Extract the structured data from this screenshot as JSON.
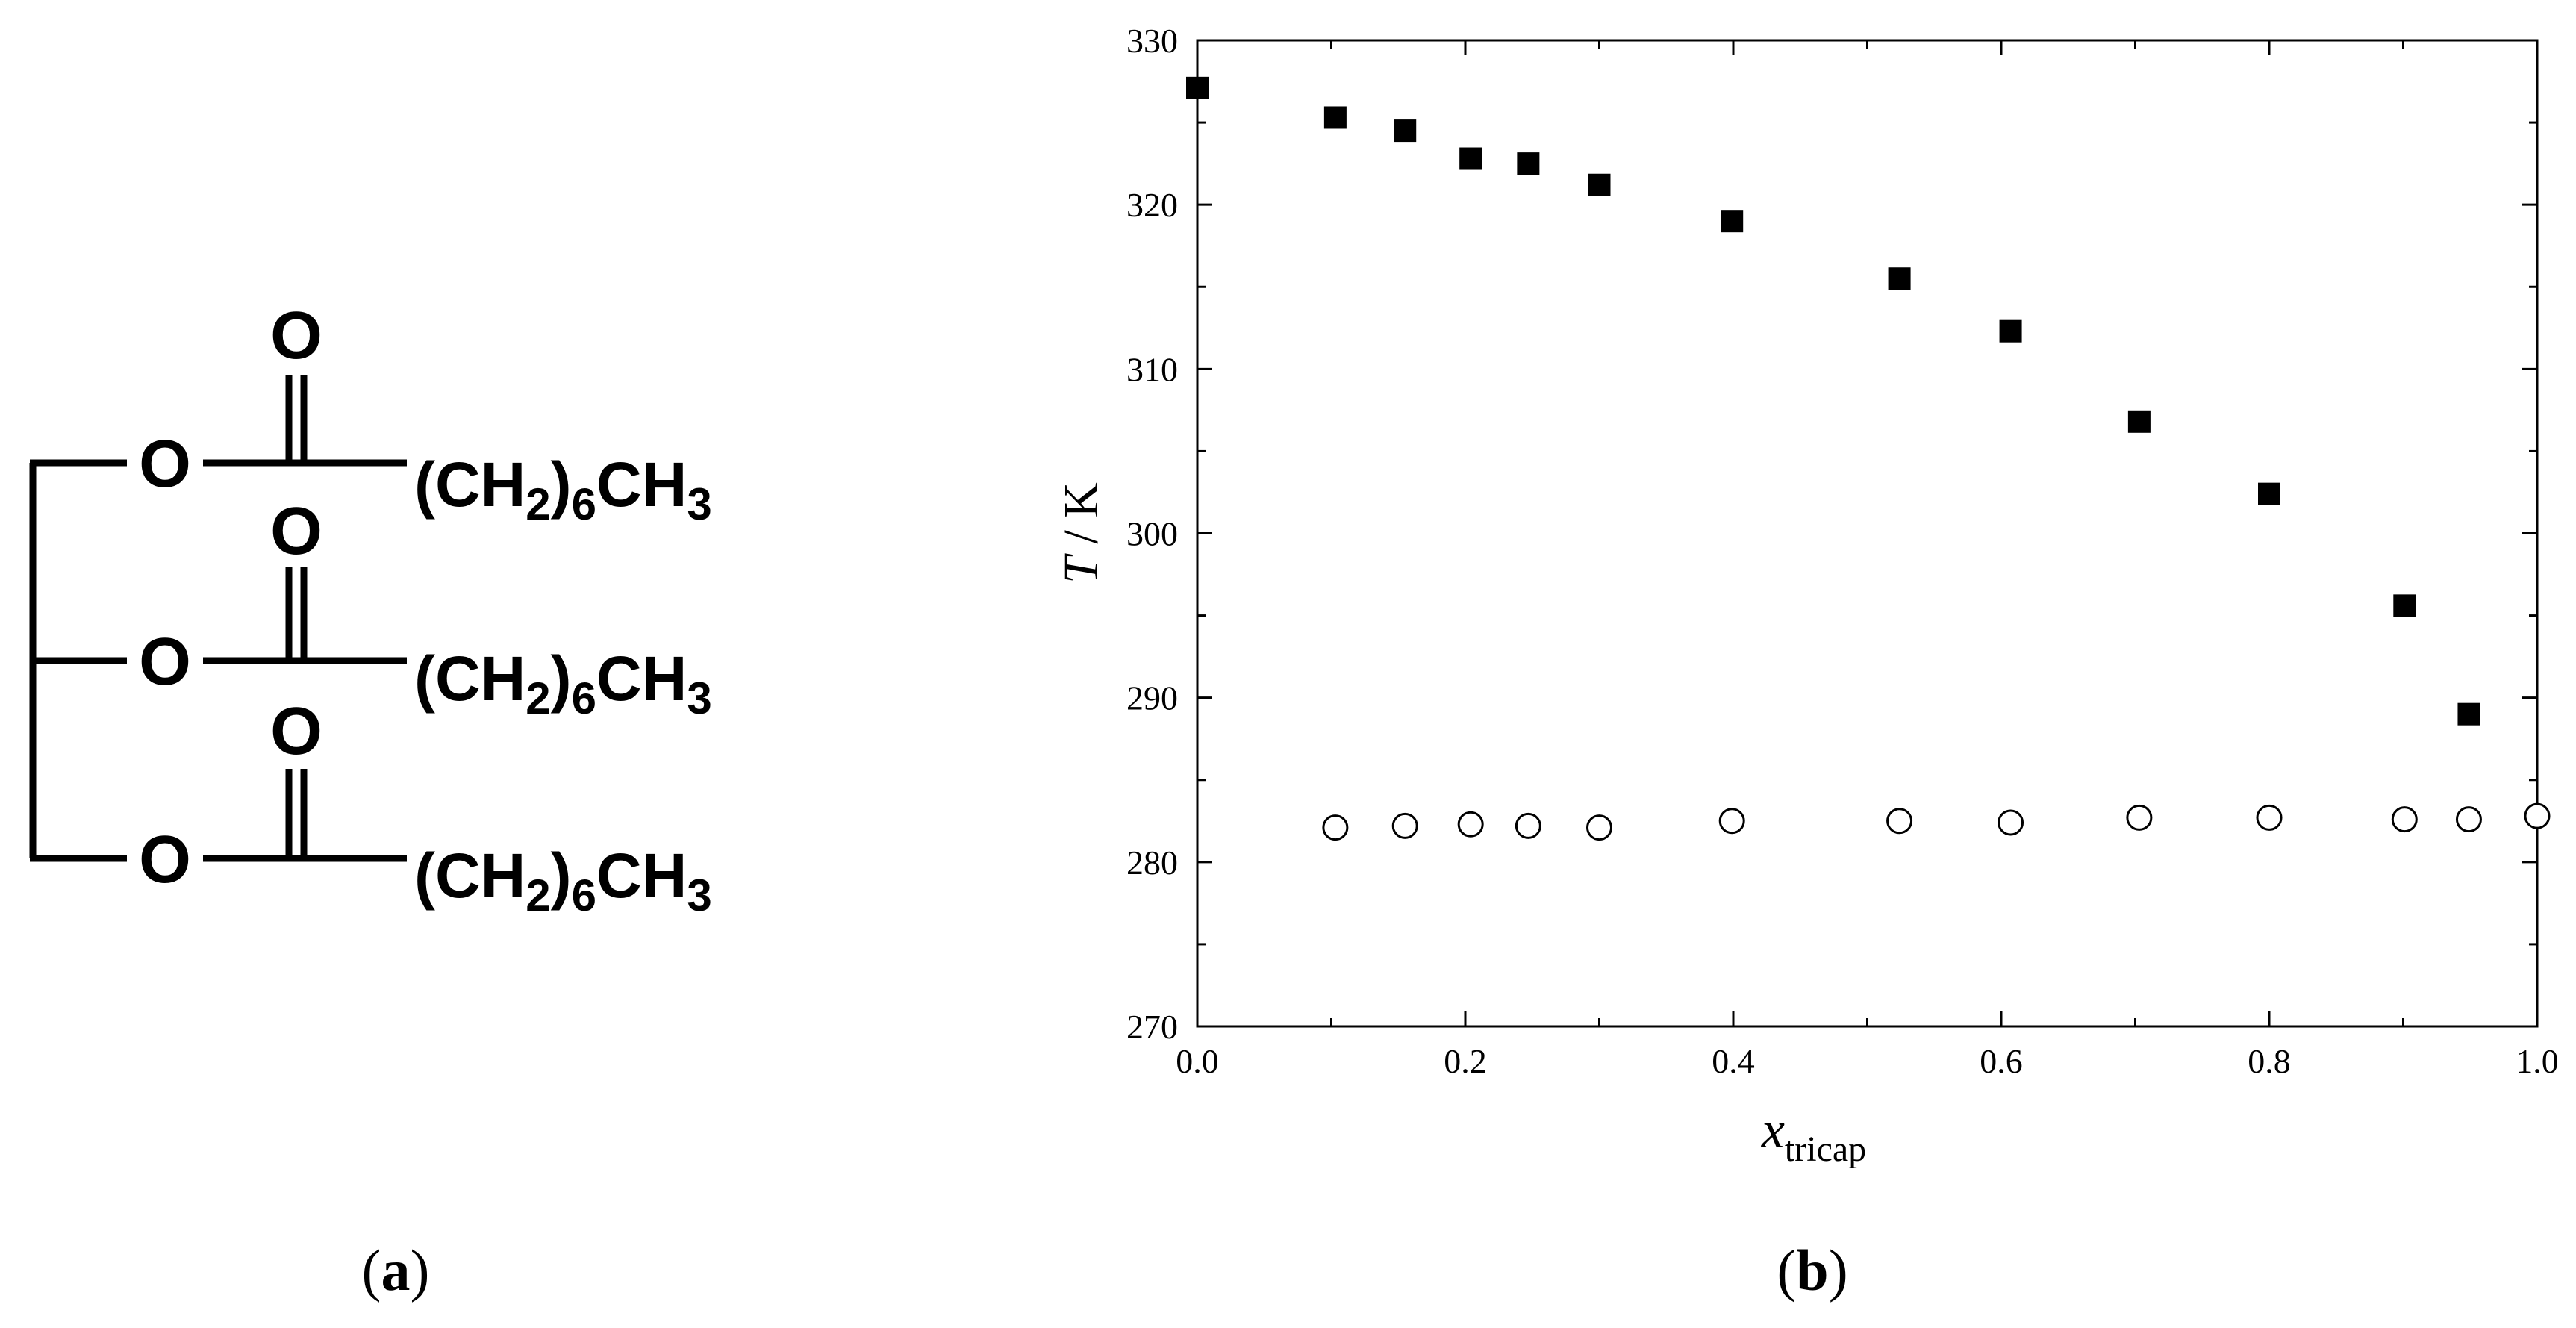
{
  "structure": {
    "rows": [
      {
        "ester_o": "O",
        "carbonyl_o": "O",
        "chain_open": "(CH",
        "sub_2": "2",
        "chain_mid": ")",
        "sub_6": "6",
        "chain_ch": "CH",
        "sub_3": "3"
      },
      {
        "ester_o": "O",
        "carbonyl_o": "O",
        "chain_open": "(CH",
        "sub_2": "2",
        "chain_mid": ")",
        "sub_6": "6",
        "chain_ch": "CH",
        "sub_3": "3"
      },
      {
        "ester_o": "O",
        "carbonyl_o": "O",
        "chain_open": "(CH",
        "sub_2": "2",
        "chain_mid": ")",
        "sub_6": "6",
        "chain_ch": "CH",
        "sub_3": "3"
      }
    ]
  },
  "panel_labels": {
    "a": {
      "open": "(",
      "letter": "a",
      "close": ")"
    },
    "b": {
      "open": "(",
      "letter": "b",
      "close": ")"
    }
  },
  "chart_data": {
    "type": "scatter",
    "title": "",
    "xlabel": {
      "main": "x",
      "sub": "tricap"
    },
    "ylabel": {
      "main": "T",
      "rest": " / K"
    },
    "xlim": [
      0.0,
      1.0
    ],
    "ylim": [
      270,
      330
    ],
    "xticks": [
      0.0,
      0.2,
      0.4,
      0.6,
      0.8,
      1.0
    ],
    "xtick_labels": [
      "0.0",
      "0.2",
      "0.4",
      "0.6",
      "0.8",
      "1.0"
    ],
    "yticks": [
      270,
      280,
      290,
      300,
      310,
      320,
      330
    ],
    "ytick_labels": [
      "270",
      "280",
      "290",
      "300",
      "310",
      "320",
      "330"
    ],
    "grid": false,
    "legend": "none",
    "series": [
      {
        "marker": "filled-square",
        "color": "#000000",
        "x": [
          0.0,
          0.103,
          0.155,
          0.204,
          0.247,
          0.3,
          0.399,
          0.524,
          0.607,
          0.703,
          0.8,
          0.901,
          0.949
        ],
        "y": [
          327.1,
          325.3,
          324.5,
          322.8,
          322.5,
          321.2,
          319.0,
          315.5,
          312.3,
          306.8,
          302.4,
          295.6,
          289.0
        ]
      },
      {
        "marker": "open-circle",
        "color": "#000000",
        "x": [
          0.103,
          0.155,
          0.204,
          0.247,
          0.3,
          0.399,
          0.524,
          0.607,
          0.703,
          0.8,
          0.901,
          0.949,
          1.0
        ],
        "y": [
          282.1,
          282.2,
          282.3,
          282.2,
          282.1,
          282.5,
          282.5,
          282.4,
          282.7,
          282.7,
          282.6,
          282.6,
          282.8
        ]
      }
    ]
  }
}
